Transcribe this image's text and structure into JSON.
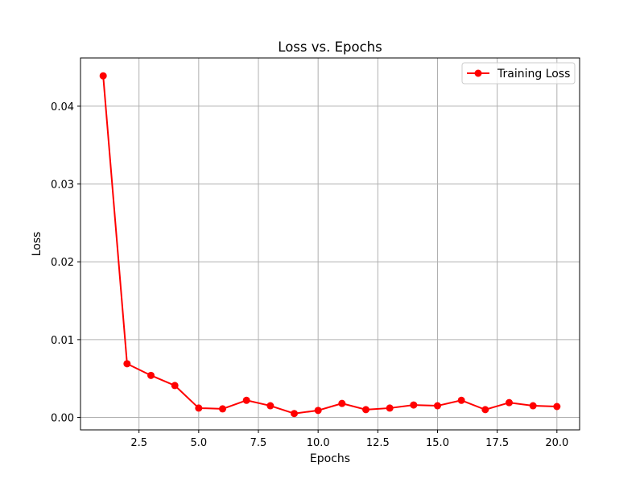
{
  "chart_data": {
    "type": "line",
    "title": "Loss vs. Epochs",
    "xlabel": "Epochs",
    "ylabel": "Loss",
    "xlim": [
      0.05,
      20.95
    ],
    "ylim": [
      -0.0016,
      0.0462
    ],
    "xticks": [
      2.5,
      5.0,
      7.5,
      10.0,
      12.5,
      15.0,
      17.5,
      20.0
    ],
    "xtick_labels": [
      "2.5",
      "5.0",
      "7.5",
      "10.0",
      "12.5",
      "15.0",
      "17.5",
      "20.0"
    ],
    "yticks": [
      0.0,
      0.01,
      0.02,
      0.03,
      0.04
    ],
    "ytick_labels": [
      "0.00",
      "0.01",
      "0.02",
      "0.03",
      "0.04"
    ],
    "grid": true,
    "legend_position": "top-right",
    "series": [
      {
        "name": "Training Loss",
        "color": "#ff0000",
        "marker": "circle",
        "x": [
          1,
          2,
          3,
          4,
          5,
          6,
          7,
          8,
          9,
          10,
          11,
          12,
          13,
          14,
          15,
          16,
          17,
          18,
          19,
          20
        ],
        "y": [
          0.0439,
          0.0069,
          0.0054,
          0.0041,
          0.0012,
          0.0011,
          0.0022,
          0.0015,
          0.0005,
          0.0009,
          0.0018,
          0.001,
          0.0012,
          0.0016,
          0.0015,
          0.0022,
          0.001,
          0.0019,
          0.0015,
          0.0014
        ]
      }
    ]
  }
}
